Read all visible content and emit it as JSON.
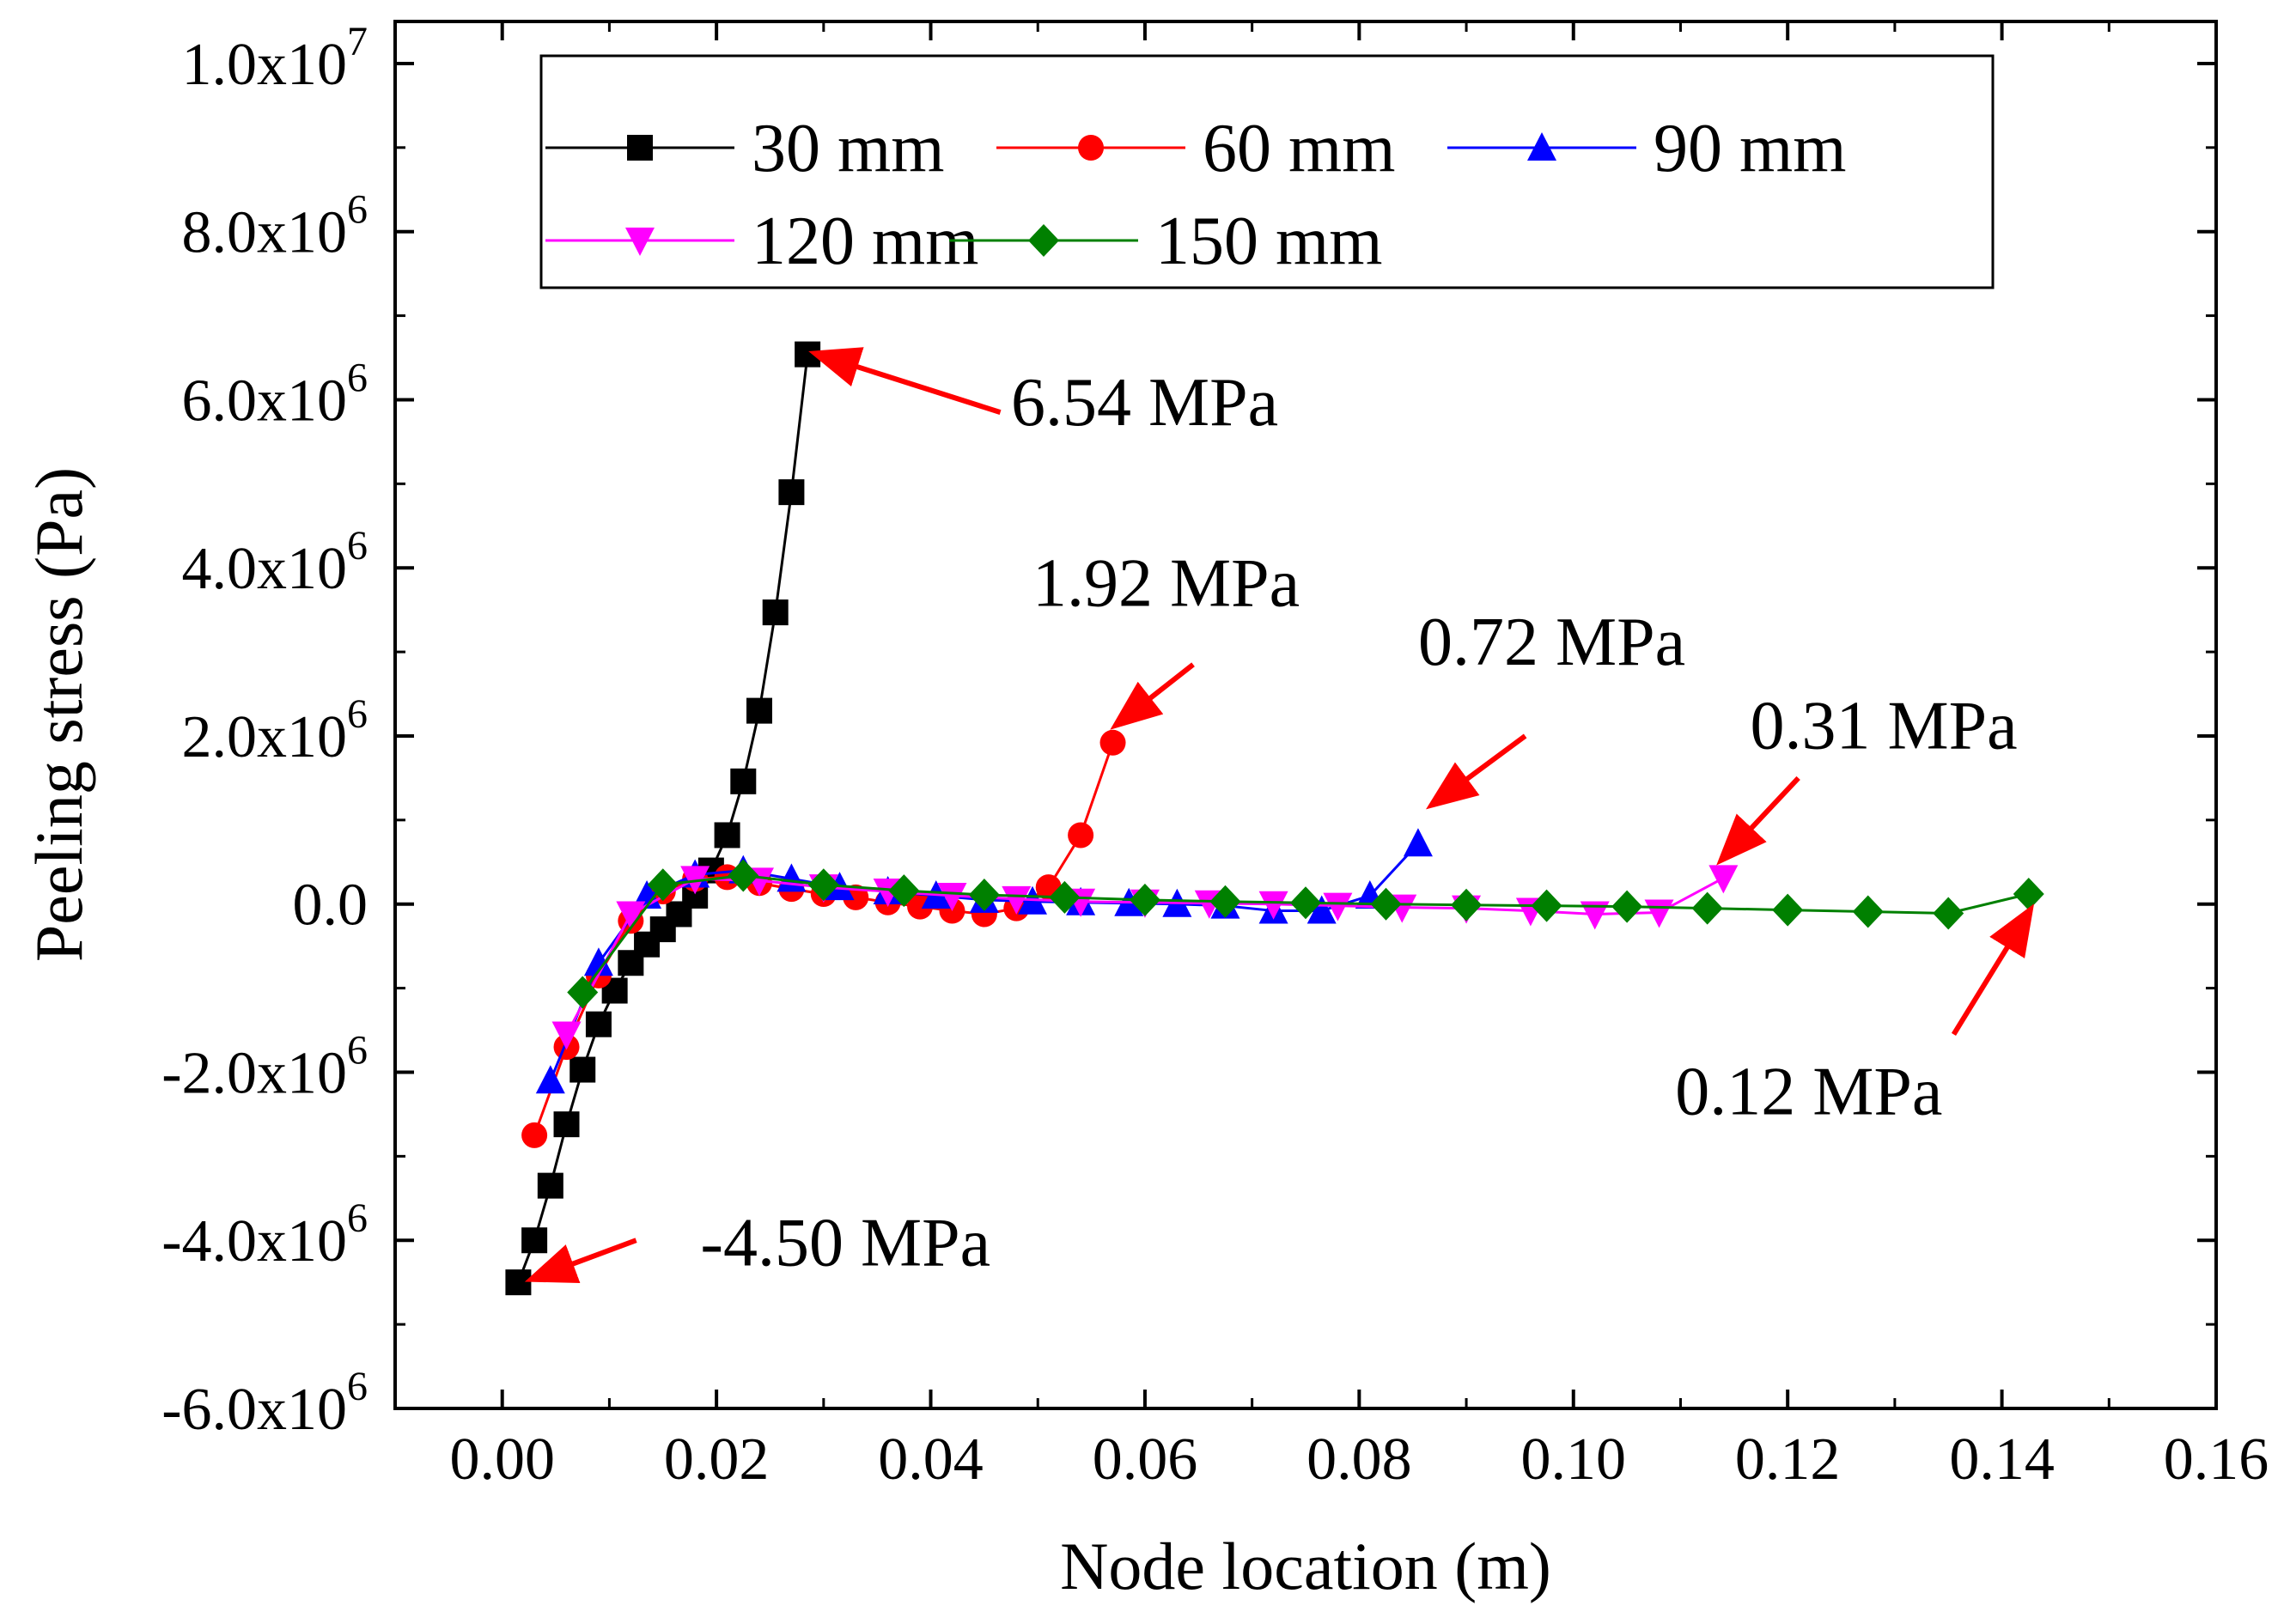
{
  "chart_data": {
    "type": "line",
    "title": "",
    "xlabel": "Node location (m)",
    "ylabel": "Peeling stress (Pa)",
    "xlim": [
      -0.01,
      0.16
    ],
    "ylim": [
      -6000000,
      10500000
    ],
    "x_ticks": [
      0.0,
      0.02,
      0.04,
      0.06,
      0.08,
      0.1,
      0.12,
      0.14,
      0.16
    ],
    "x_tick_labels": [
      "0.00",
      "0.02",
      "0.04",
      "0.06",
      "0.08",
      "0.10",
      "0.12",
      "0.14",
      "0.16"
    ],
    "y_ticks": [
      -6000000,
      -4000000,
      -2000000,
      0,
      2000000,
      4000000,
      6000000,
      8000000,
      10000000
    ],
    "y_tick_labels": [
      {
        "mant": "-6.0x10",
        "exp": "6"
      },
      {
        "mant": "-4.0x10",
        "exp": "6"
      },
      {
        "mant": "-2.0x10",
        "exp": "6"
      },
      {
        "mant": "0.0",
        "exp": ""
      },
      {
        "mant": "2.0x10",
        "exp": "6"
      },
      {
        "mant": "4.0x10",
        "exp": "6"
      },
      {
        "mant": "6.0x10",
        "exp": "6"
      },
      {
        "mant": "8.0x10",
        "exp": "6"
      },
      {
        "mant": "1.0x10",
        "exp": "7"
      }
    ],
    "grid": false,
    "legend_position": "top",
    "series": [
      {
        "name": "30 mm",
        "color": "#000000",
        "marker": "square",
        "x": [
          0.0015,
          0.003,
          0.0045,
          0.006,
          0.0075,
          0.009,
          0.0105,
          0.012,
          0.0135,
          0.015,
          0.0165,
          0.018,
          0.0195,
          0.021,
          0.0225,
          0.024,
          0.0255,
          0.027,
          0.0285
        ],
        "y": [
          -4500000,
          -4000000,
          -3350000,
          -2620000,
          -1970000,
          -1430000,
          -1030000,
          -700000,
          -480000,
          -300000,
          -120000,
          100000,
          400000,
          820000,
          1460000,
          2300000,
          3470000,
          4900000,
          6540000
        ]
      },
      {
        "name": "60 mm",
        "color": "#ff0000",
        "marker": "circle",
        "x": [
          0.003,
          0.006,
          0.009,
          0.012,
          0.015,
          0.018,
          0.021,
          0.024,
          0.027,
          0.03,
          0.033,
          0.036,
          0.039,
          0.042,
          0.045,
          0.048,
          0.051,
          0.054,
          0.057
        ],
        "y": [
          -2750000,
          -1700000,
          -850000,
          -200000,
          150000,
          300000,
          320000,
          250000,
          180000,
          120000,
          80000,
          20000,
          -30000,
          -80000,
          -120000,
          -50000,
          200000,
          820000,
          1920000
        ]
      },
      {
        "name": "90 mm",
        "color": "#0000ff",
        "marker": "triangle-up",
        "x": [
          0.0045,
          0.009,
          0.0135,
          0.018,
          0.0225,
          0.027,
          0.0315,
          0.036,
          0.0405,
          0.045,
          0.0495,
          0.054,
          0.0585,
          0.063,
          0.0675,
          0.072,
          0.0765,
          0.081,
          0.0855
        ],
        "y": [
          -2100000,
          -700000,
          100000,
          350000,
          400000,
          300000,
          200000,
          150000,
          100000,
          50000,
          30000,
          20000,
          10000,
          0,
          -20000,
          -80000,
          -80000,
          100000,
          720000
        ]
      },
      {
        "name": "120 mm",
        "color": "#ff00ff",
        "marker": "triangle-down",
        "x": [
          0.006,
          0.012,
          0.018,
          0.024,
          0.03,
          0.036,
          0.042,
          0.048,
          0.054,
          0.06,
          0.066,
          0.072,
          0.078,
          0.084,
          0.09,
          0.096,
          0.102,
          0.108,
          0.114
        ],
        "y": [
          -1550000,
          -120000,
          300000,
          280000,
          200000,
          150000,
          100000,
          60000,
          30000,
          20000,
          10000,
          0,
          -20000,
          -40000,
          -50000,
          -80000,
          -120000,
          -100000,
          310000
        ]
      },
      {
        "name": "150 mm",
        "color": "#008000",
        "marker": "diamond",
        "x": [
          0.0075,
          0.015,
          0.0225,
          0.03,
          0.0375,
          0.045,
          0.0525,
          0.06,
          0.0675,
          0.075,
          0.0825,
          0.09,
          0.0975,
          0.105,
          0.1125,
          0.12,
          0.1275,
          0.135,
          0.1425
        ],
        "y": [
          -1050000,
          230000,
          340000,
          230000,
          160000,
          110000,
          80000,
          50000,
          30000,
          15000,
          0,
          -10000,
          -20000,
          -30000,
          -50000,
          -70000,
          -90000,
          -110000,
          120000
        ]
      }
    ],
    "annotations": [
      {
        "text": "6.54 MPa",
        "color": "#ff0000",
        "label_x": 0.0475,
        "label_y": 5700000,
        "arrow_from": [
          0.0465,
          5850000
        ],
        "arrow_to": [
          0.0295,
          6540000
        ]
      },
      {
        "text": "1.92 MPa",
        "color": "#ff0000",
        "label_x": 0.0495,
        "label_y": 3550000,
        "arrow_from": [
          0.0645,
          2850000
        ],
        "arrow_to": [
          0.0575,
          2150000
        ]
      },
      {
        "text": "0.72 MPa",
        "color": "#ff0000",
        "label_x": 0.0855,
        "label_y": 2850000,
        "arrow_from": [
          0.0955,
          2000000
        ],
        "arrow_to": [
          0.087,
          1200000
        ]
      },
      {
        "text": "0.31 MPa",
        "color": "#ff0000",
        "label_x": 0.1165,
        "label_y": 1850000,
        "arrow_from": [
          0.121,
          1500000
        ],
        "arrow_to": [
          0.114,
          550000
        ]
      },
      {
        "text": "0.12 MPa",
        "color": "#ff0000",
        "label_x": 0.1095,
        "label_y": -2500000,
        "arrow_from": [
          0.1355,
          -1550000
        ],
        "arrow_to": [
          0.1425,
          -100000
        ]
      },
      {
        "text": "-4.50 MPa",
        "color": "#ff0000",
        "label_x": 0.0185,
        "label_y": -4300000,
        "arrow_from": [
          0.0125,
          -4000000
        ],
        "arrow_to": [
          0.003,
          -4450000
        ]
      }
    ]
  }
}
